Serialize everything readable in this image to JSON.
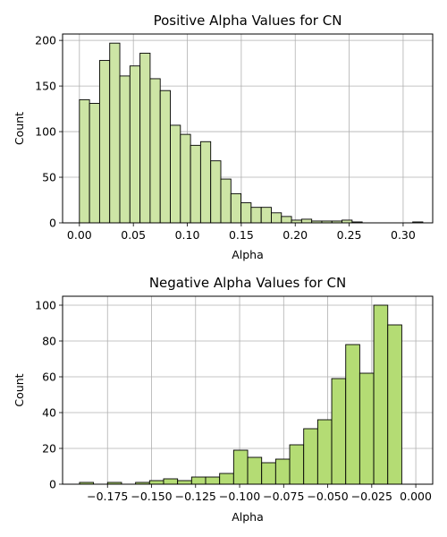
{
  "chart_data": [
    {
      "type": "bar",
      "title": "Positive Alpha Values for CN",
      "xlabel": "Alpha",
      "ylabel": "Count",
      "bar_color": "#cde5a5",
      "edge_color": "#000000",
      "grid": true,
      "xlim": [
        -0.0156,
        0.3274
      ],
      "ylim": [
        0,
        207
      ],
      "xticks": [
        {
          "value": 0.0,
          "label": "0.00"
        },
        {
          "value": 0.05,
          "label": "0.05"
        },
        {
          "value": 0.1,
          "label": "0.10"
        },
        {
          "value": 0.15,
          "label": "0.15"
        },
        {
          "value": 0.2,
          "label": "0.20"
        },
        {
          "value": 0.25,
          "label": "0.25"
        },
        {
          "value": 0.3,
          "label": "0.30"
        }
      ],
      "yticks": [
        {
          "value": 0,
          "label": "0"
        },
        {
          "value": 50,
          "label": "50"
        },
        {
          "value": 100,
          "label": "100"
        },
        {
          "value": 150,
          "label": "150"
        },
        {
          "value": 200,
          "label": "200"
        }
      ],
      "bin_start": 0.0,
      "bin_width": 0.00936,
      "values": [
        135,
        131,
        178,
        197,
        161,
        172,
        186,
        158,
        145,
        107,
        97,
        85,
        89,
        68,
        48,
        32,
        22,
        17,
        17,
        11,
        7,
        3,
        4,
        2,
        2,
        2,
        3,
        1,
        0,
        0,
        0,
        0,
        0,
        1
      ]
    },
    {
      "type": "bar",
      "title": "Negative Alpha Values for CN",
      "xlabel": "Alpha",
      "ylabel": "Count",
      "bar_color": "#b4dc74",
      "edge_color": "#000000",
      "grid": true,
      "xlim": [
        -0.2005,
        0.0096
      ],
      "ylim": [
        0,
        105
      ],
      "xticks": [
        {
          "value": -0.175,
          "label": "−0.175"
        },
        {
          "value": -0.15,
          "label": "−0.150"
        },
        {
          "value": -0.125,
          "label": "−0.125"
        },
        {
          "value": -0.1,
          "label": "−0.100"
        },
        {
          "value": -0.075,
          "label": "−0.075"
        },
        {
          "value": -0.05,
          "label": "−0.050"
        },
        {
          "value": -0.025,
          "label": "−0.025"
        },
        {
          "value": 0.0,
          "label": "0.000"
        }
      ],
      "yticks": [
        {
          "value": 0,
          "label": "0"
        },
        {
          "value": 20,
          "label": "20"
        },
        {
          "value": 40,
          "label": "40"
        },
        {
          "value": 60,
          "label": "60"
        },
        {
          "value": 80,
          "label": "80"
        },
        {
          "value": 100,
          "label": "100"
        }
      ],
      "bin_start": -0.19088,
      "bin_width": 0.0079533,
      "values": [
        1,
        0,
        1,
        0,
        1,
        2,
        3,
        2,
        4,
        4,
        6,
        19,
        15,
        12,
        14,
        22,
        31,
        36,
        59,
        78,
        62,
        100,
        89
      ]
    }
  ]
}
